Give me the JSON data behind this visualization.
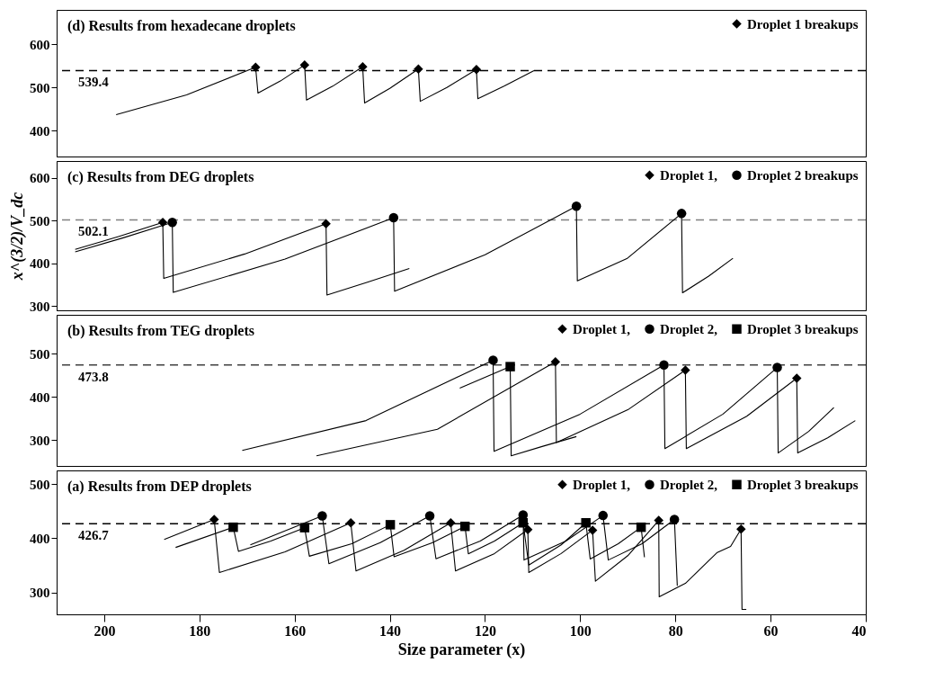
{
  "chart_data": [
    {
      "type": "line",
      "title": "(d) Results from hexadecane droplets",
      "xlim": [
        210,
        40
      ],
      "xticks": [
        200,
        180,
        160,
        140,
        120,
        100,
        80,
        60,
        40
      ],
      "ylim": [
        340,
        680
      ],
      "yticks": [
        400,
        500,
        600
      ],
      "tick_labels": "y",
      "grid": false,
      "legend": "top right",
      "ref_lines": [
        {
          "axis": "y",
          "value": 539.4,
          "label": "539.4",
          "color": "#000000",
          "line_style": "dashed"
        }
      ],
      "series": [
        {
          "color": "#000000",
          "x": [
            197.5,
            182.7,
            168.2,
            167.7,
            163,
            157.9,
            157.5,
            152,
            145.7,
            145.3,
            140,
            134,
            133.6,
            128,
            121.8,
            121.5,
            116,
            109.7
          ],
          "values": [
            437,
            483,
            547,
            487,
            515,
            552,
            471,
            503,
            548,
            464,
            498,
            543,
            468,
            500,
            542,
            474,
            503,
            539
          ]
        },
        {
          "type": "scatter",
          "name": "Droplet 1 breakups",
          "marker": "diamond",
          "color": "#000000",
          "x": [
            168.2,
            157.9,
            145.7,
            134,
            121.8
          ],
          "values": [
            547,
            552,
            548,
            543,
            542
          ]
        }
      ]
    },
    {
      "type": "line",
      "title": "(c) Results from DEG droplets",
      "ylabel": "x^(3/2)/V_dc",
      "xlim": [
        210,
        40
      ],
      "xticks": [
        200,
        180,
        160,
        140,
        120,
        100,
        80,
        60,
        40
      ],
      "ylim": [
        290,
        640
      ],
      "yticks": [
        300,
        400,
        500,
        600
      ],
      "tick_labels": "y",
      "grid": false,
      "legend": "top right",
      "ref_lines": [
        {
          "axis": "y",
          "value": 502.1,
          "label": "502.1",
          "color": "#808080",
          "line_style": "dashed"
        }
      ],
      "series": [
        {
          "color": "#000000",
          "x": [
            206.1,
            197,
            187.7,
            187.5,
            170.5,
            153.4,
            153.2,
            145,
            135.9
          ],
          "values": [
            433,
            463,
            496,
            365,
            422,
            493,
            326,
            355,
            388
          ]
        },
        {
          "color": "#000000",
          "x": [
            206.1,
            196,
            185.7,
            185.5,
            162,
            139.2,
            139.0,
            120,
            100.8,
            100.6,
            90.2,
            78.7,
            78.5,
            73,
            67.9
          ],
          "values": [
            427,
            460,
            496,
            332,
            410,
            507,
            335,
            420,
            534,
            359,
            411,
            517,
            331,
            370,
            412
          ]
        },
        {
          "type": "scatter",
          "name": "Droplet 1,",
          "marker": "diamond",
          "color": "#000000",
          "x": [
            187.7,
            153.4
          ],
          "values": [
            496,
            493
          ]
        },
        {
          "type": "scatter",
          "name": "Droplet 2 breakups",
          "marker": "circle",
          "color": "#000000",
          "x": [
            185.7,
            139.2,
            100.8,
            78.7
          ],
          "values": [
            496,
            507,
            534,
            517
          ]
        }
      ]
    },
    {
      "type": "line",
      "title": "(b) Results from TEG droplets",
      "xlim": [
        210,
        40
      ],
      "xticks": [
        200,
        180,
        160,
        140,
        120,
        100,
        80,
        60,
        40
      ],
      "ylim": [
        240,
        590
      ],
      "yticks": [
        300,
        400,
        500
      ],
      "tick_labels": "y",
      "grid": false,
      "legend": "top right",
      "ref_lines": [
        {
          "axis": "y",
          "value": 473.8,
          "label": "473.8",
          "color": "#404040",
          "line_style": "dashed"
        }
      ],
      "series": [
        {
          "color": "#000000",
          "x": [
            171,
            145,
            118.3,
            118.1,
            100,
            82.4,
            82.2,
            70,
            58.6,
            58.4,
            52,
            46.7
          ],
          "values": [
            276,
            345,
            485,
            274,
            360,
            474,
            280,
            360,
            468,
            270,
            320,
            375
          ]
        },
        {
          "color": "#000000",
          "x": [
            155.4,
            130,
            105.2,
            105.0,
            90,
            77.9,
            77.7,
            65,
            54.5,
            54.3,
            48,
            42.2
          ],
          "values": [
            263.5,
            325,
            481,
            294,
            370,
            462,
            280,
            355,
            443,
            270,
            305,
            345
          ]
        },
        {
          "color": "#000000",
          "x": [
            125.3,
            114.7,
            114.5,
            108,
            100.8
          ],
          "values": [
            420,
            470,
            263.5,
            285,
            308
          ]
        },
        {
          "type": "scatter",
          "name": "Droplet 1,",
          "marker": "diamond",
          "color": "#000000",
          "x": [
            105.2,
            77.9,
            54.5
          ],
          "values": [
            481,
            462,
            443
          ]
        },
        {
          "type": "scatter",
          "name": "Droplet 2,",
          "marker": "circle",
          "color": "#000000",
          "x": [
            118.3,
            82.4,
            58.6
          ],
          "values": [
            485,
            474,
            468
          ]
        },
        {
          "type": "scatter",
          "name": "Droplet 3 breakups",
          "marker": "square",
          "color": "#000000",
          "x": [
            114.7
          ],
          "values": [
            470
          ]
        }
      ]
    },
    {
      "type": "line",
      "title": "(a) Results from DEP droplets",
      "xlabel": "Size parameter (x)",
      "xlim": [
        210,
        40
      ],
      "xticks": [
        200,
        180,
        160,
        140,
        120,
        100,
        80,
        60,
        40
      ],
      "ylim": [
        260,
        525
      ],
      "yticks": [
        300,
        400,
        500
      ],
      "grid": false,
      "legend": "top right",
      "ref_lines": [
        {
          "axis": "y",
          "value": 426.7,
          "label": "426.7",
          "color": "#000000",
          "line_style": "dashed"
        }
      ],
      "series": [
        {
          "color": "#000000",
          "x": [
            187.4,
            176.9,
            175.8,
            162,
            148.2,
            147.1,
            137,
            127.2,
            126.2,
            118,
            111.0,
            110.8,
            104,
            97.4,
            96.8,
            90,
            83.5,
            83.4,
            77.9,
            71.2,
            68.4,
            66.2,
            66.0,
            65.1
          ],
          "values": [
            397.7,
            434.8,
            337,
            375,
            428.5,
            339.8,
            378,
            428.5,
            339.8,
            372,
            416,
            337,
            372,
            415,
            321,
            368,
            433,
            292.4,
            317,
            374,
            385,
            416.8,
            269,
            269
          ]
        },
        {
          "color": "#000000",
          "x": [
            169.3,
            154.2,
            152.8,
            142,
            131.6,
            130.3,
            121,
            112.0,
            111.8,
            103,
            95.2,
            94.1,
            87,
            80.2,
            79.6
          ],
          "values": [
            388,
            441.3,
            353.3,
            392,
            441.3,
            362.3,
            395,
            443,
            360,
            395,
            442,
            360,
            390,
            434.8,
            312.5
          ]
        },
        {
          "color": "#000000",
          "x": [
            185,
            172.9,
            171.8,
            165,
            157.9,
            156.9,
            148,
            139.9,
            139.1,
            131,
            124.2,
            123.5,
            118,
            112.0,
            110.8,
            104,
            98.8,
            97.9,
            92,
            87.2,
            86.5
          ],
          "values": [
            383.2,
            420.4,
            376,
            395,
            419.6,
            367,
            390,
            425,
            366,
            392,
            422,
            371.5,
            395,
            428.5,
            350.6,
            388,
            428.5,
            362,
            390,
            420.4,
            365.2
          ]
        },
        {
          "type": "scatter",
          "name": "Droplet 1,",
          "marker": "diamond",
          "color": "#000000",
          "x": [
            176.9,
            148.2,
            127.2,
            111.0,
            97.4,
            83.5,
            66.2
          ],
          "values": [
            434.8,
            428.5,
            428.5,
            416,
            415,
            433,
            416.8
          ]
        },
        {
          "type": "scatter",
          "name": "Droplet 2,",
          "marker": "circle",
          "color": "#000000",
          "x": [
            154.2,
            131.6,
            112.0,
            95.2,
            80.2
          ],
          "values": [
            441.3,
            441.3,
            443,
            442,
            434.8
          ]
        },
        {
          "type": "scatter",
          "name": "Droplet 3 breakups",
          "marker": "square",
          "color": "#000000",
          "x": [
            172.9,
            157.9,
            139.9,
            124.2,
            112.0,
            98.8,
            87.2
          ],
          "values": [
            420.4,
            419.6,
            425,
            422,
            428.5,
            428.5,
            420.4
          ]
        }
      ]
    }
  ]
}
